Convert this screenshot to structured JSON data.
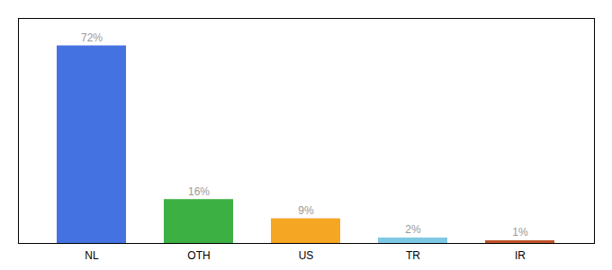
{
  "chart_data": {
    "type": "bar",
    "categories": [
      "NL",
      "OTH",
      "US",
      "TR",
      "IR"
    ],
    "values": [
      72,
      16,
      9,
      2,
      1
    ],
    "value_labels": [
      "72%",
      "16%",
      "9%",
      "2%",
      "1%"
    ],
    "colors": [
      "#4472E0",
      "#3CB043",
      "#F5A623",
      "#7EC8E3",
      "#C0522A"
    ],
    "ylim": [
      0,
      82
    ],
    "data_labels": true,
    "tick_labels": "x",
    "grid": false
  }
}
